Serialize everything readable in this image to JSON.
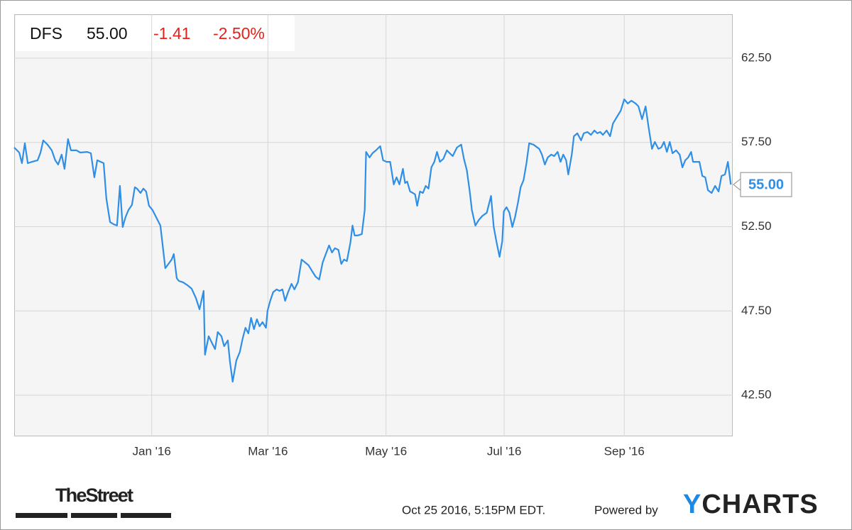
{
  "header": {
    "ticker": "DFS",
    "price": "55.00",
    "change": "-1.41",
    "change_pct": "-2.50%"
  },
  "chart_data": {
    "type": "line",
    "color": "#2f8fe6",
    "grid": true,
    "xlim": [
      0,
      371
    ],
    "ylim": [
      40.06,
      65.11
    ],
    "xticks": [
      {
        "value": 71,
        "label": "Jan '16"
      },
      {
        "value": 131,
        "label": "Mar '16"
      },
      {
        "value": 192,
        "label": "May '16"
      },
      {
        "value": 253,
        "label": "Jul '16"
      },
      {
        "value": 315,
        "label": "Sep '16"
      }
    ],
    "yticks": [
      {
        "value": 42.5,
        "label": "42.50"
      },
      {
        "value": 47.5,
        "label": "47.50"
      },
      {
        "value": 52.5,
        "label": "52.50"
      },
      {
        "value": 57.5,
        "label": "57.50"
      },
      {
        "value": 62.5,
        "label": "62.50"
      }
    ],
    "x": [
      0,
      2.6,
      4.0,
      5.5,
      7.0,
      9.2,
      12.1,
      13.6,
      15.0,
      17.2,
      19.4,
      21.2,
      22.7,
      24.5,
      26.0,
      27.8,
      29.3,
      32.2,
      34.1,
      37.7,
      39.6,
      41.4,
      42.9,
      46.2,
      47.6,
      49.5,
      51.3,
      53.1,
      54.6,
      56.0,
      57.5,
      59.0,
      60.8,
      62.3,
      63.4,
      65.2,
      66.7,
      68.1,
      69.6,
      71.4,
      74.0,
      75.5,
      78.0,
      80.2,
      81.3,
      82.4,
      83.9,
      85.0,
      87.2,
      89.4,
      91.6,
      93.8,
      95.7,
      97.8,
      98.5,
      100.4,
      102.2,
      103.7,
      105.1,
      107.0,
      108.4,
      110.3,
      111.4,
      112.8,
      114.7,
      116.5,
      117.9,
      119.4,
      120.9,
      122.3,
      123.8,
      125.3,
      126.7,
      128.2,
      130.0,
      130.8,
      132.2,
      133.7,
      135.5,
      137.0,
      138.5,
      139.9,
      141.4,
      143.2,
      144.7,
      146.5,
      148.4,
      150.2,
      152.0,
      153.8,
      155.7,
      157.5,
      159.3,
      161.2,
      162.6,
      164.1,
      165.6,
      167.4,
      168.9,
      170.3,
      171.8,
      173.6,
      174.7,
      175.8,
      177.3,
      179.5,
      181.0,
      181.7,
      183.5,
      185.0,
      186.8,
      189.0,
      190.5,
      192.3,
      194.1,
      196.0,
      197.4,
      198.9,
      200.7,
      201.8,
      202.9,
      204.4,
      205.9,
      207.0,
      208.1,
      209.5,
      211.0,
      212.5,
      213.9,
      215.4,
      216.9,
      218.3,
      219.8,
      221.6,
      223.4,
      224.9,
      226.4,
      228.6,
      230.8,
      232.2,
      233.7,
      235.2,
      236.3,
      238.1,
      239.9,
      241.8,
      244.0,
      246.2,
      247.6,
      249.1,
      250.6,
      252.0,
      252.8,
      254.2,
      255.7,
      257.2,
      258.6,
      260.1,
      261.5,
      263.0,
      264.5,
      265.9,
      268.1,
      271.1,
      272.5,
      274.0,
      275.5,
      277.3,
      278.8,
      280.6,
      282.1,
      283.5,
      285.0,
      286.1,
      287.9,
      289.0,
      290.8,
      292.7,
      294.1,
      296.0,
      297.8,
      299.6,
      301.1,
      302.6,
      304.0,
      305.9,
      307.7,
      309.2,
      311.4,
      313.2,
      315.0,
      316.8,
      318.7,
      320.9,
      322.3,
      324.2,
      326.0,
      327.5,
      329.3,
      330.8,
      332.6,
      334.1,
      335.5,
      337.0,
      338.5,
      339.9,
      341.8,
      343.6,
      345.0,
      346.5,
      348.0,
      349.5,
      350.5,
      352.4,
      353.8,
      355.3,
      356.8,
      358.2,
      360.1,
      361.9,
      363.7,
      365.2,
      367.0,
      368.5,
      370.0
    ],
    "values": [
      57.2,
      56.9,
      56.27,
      57.45,
      56.27,
      56.35,
      56.44,
      56.9,
      57.62,
      57.37,
      57.03,
      56.44,
      56.19,
      56.78,
      55.93,
      57.7,
      57.03,
      57.03,
      56.9,
      56.94,
      56.86,
      55.43,
      56.44,
      56.27,
      54.17,
      52.78,
      52.65,
      52.57,
      54.92,
      52.48,
      53.07,
      53.49,
      53.79,
      54.84,
      54.76,
      54.5,
      54.76,
      54.59,
      53.74,
      53.49,
      52.9,
      52.57,
      50.04,
      50.38,
      50.55,
      50.88,
      49.45,
      49.28,
      49.2,
      49.03,
      48.82,
      48.27,
      47.6,
      48.69,
      44.9,
      46.0,
      45.58,
      45.24,
      46.25,
      46.0,
      45.41,
      45.75,
      44.48,
      43.3,
      44.57,
      45.07,
      45.83,
      46.5,
      46.17,
      47.09,
      46.42,
      47.01,
      46.59,
      46.84,
      46.5,
      47.51,
      48.1,
      48.61,
      48.78,
      48.69,
      48.78,
      48.1,
      48.61,
      49.11,
      48.78,
      49.2,
      50.55,
      50.38,
      50.21,
      49.87,
      49.53,
      49.37,
      50.38,
      50.97,
      51.39,
      50.97,
      51.22,
      51.13,
      50.29,
      50.55,
      50.46,
      51.55,
      52.57,
      51.98,
      51.98,
      52.06,
      53.49,
      56.94,
      56.61,
      56.86,
      57.03,
      57.28,
      56.44,
      56.35,
      56.35,
      55.01,
      55.43,
      55.01,
      55.93,
      55.09,
      55.18,
      54.59,
      54.5,
      54.42,
      53.74,
      54.59,
      54.5,
      54.92,
      54.76,
      56.02,
      56.35,
      56.94,
      56.35,
      56.53,
      57.03,
      56.86,
      56.69,
      57.2,
      57.37,
      56.53,
      55.85,
      54.59,
      53.49,
      52.57,
      52.9,
      53.15,
      53.33,
      54.33,
      52.48,
      51.55,
      50.71,
      51.64,
      53.41,
      53.66,
      53.33,
      52.48,
      53.07,
      53.92,
      54.84,
      55.26,
      56.27,
      57.45,
      57.37,
      57.12,
      56.78,
      56.19,
      56.61,
      56.78,
      56.69,
      56.94,
      56.35,
      56.78,
      56.44,
      55.6,
      56.78,
      57.87,
      58.04,
      57.62,
      58.04,
      58.12,
      57.95,
      58.21,
      58.04,
      58.12,
      57.95,
      58.21,
      57.87,
      58.63,
      59.05,
      59.39,
      60.06,
      59.81,
      59.98,
      59.81,
      59.64,
      58.88,
      59.64,
      58.46,
      57.12,
      57.53,
      57.12,
      57.2,
      57.53,
      56.94,
      57.53,
      56.86,
      57.03,
      56.78,
      56.02,
      56.44,
      56.61,
      56.94,
      56.35,
      56.35,
      56.35,
      55.51,
      55.43,
      54.67,
      54.5,
      54.92,
      54.59,
      55.51,
      55.6,
      56.35,
      55.0
    ],
    "last_value_label": "55.00"
  },
  "footer": {
    "brand": "TheStreet",
    "timestamp": "Oct 25 2016, 5:15PM EDT.",
    "powered_by": "Powered by",
    "provider": "YCHARTS"
  }
}
